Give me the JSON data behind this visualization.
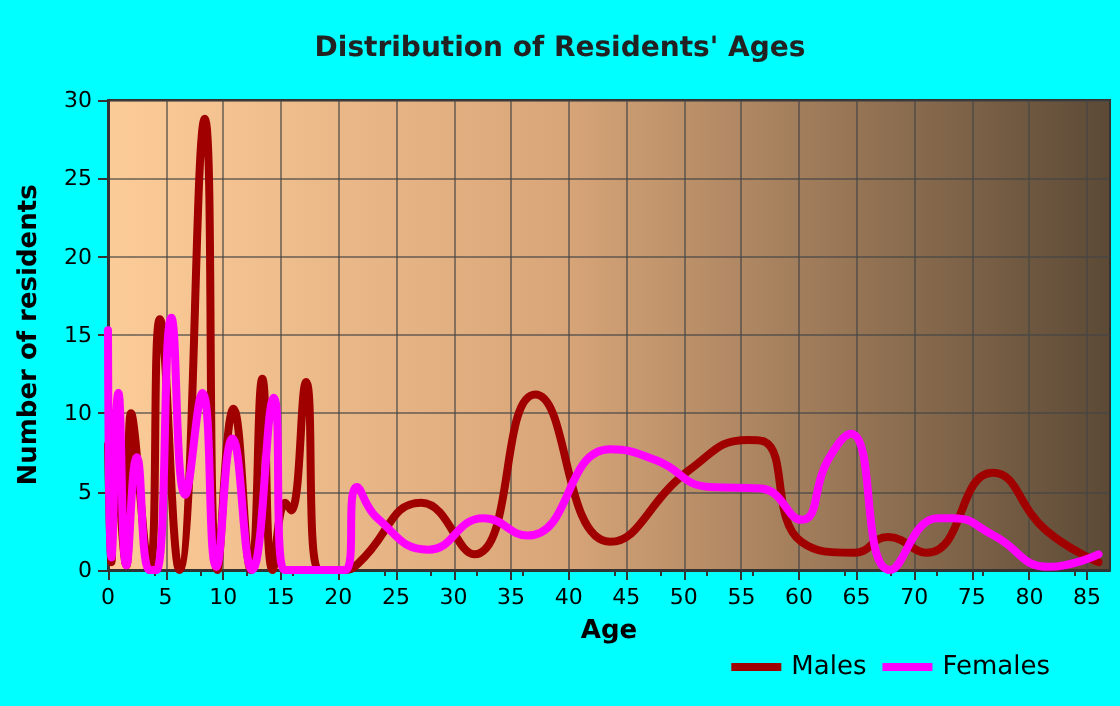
{
  "chart_data": {
    "type": "line",
    "title": "Distribution of Residents' Ages",
    "xlabel": "Age",
    "ylabel": "Number of residents",
    "xlim": [
      0,
      87
    ],
    "xticks": [
      0,
      5,
      10,
      15,
      20,
      25,
      30,
      35,
      40,
      45,
      50,
      55,
      60,
      65,
      70,
      75,
      80,
      85
    ],
    "ylim": [
      0,
      30
    ],
    "yticks": [
      0,
      5,
      10,
      15,
      20,
      25,
      30
    ],
    "grid": true,
    "legend": "bottom right",
    "marker": "none",
    "line_style": "solid",
    "series": [
      {
        "name": "Males",
        "color": "#a00000",
        "x": [
          0,
          0.3,
          0.5,
          1.6,
          2.0,
          3.6,
          4.5,
          6.2,
          8.4,
          9.5,
          10.9,
          12.4,
          13.4,
          14.3,
          15.4,
          15.9,
          17.2,
          18.3,
          20.6,
          21.7,
          27.2,
          31.8,
          37.1,
          43.6,
          50.5,
          55.6,
          57,
          60.2,
          64.8,
          67.7,
          71.1,
          76.8,
          81.5,
          86
        ],
        "values": [
          8,
          0.5,
          10,
          0.3,
          10,
          0,
          16,
          0,
          28.8,
          0,
          10.3,
          0,
          12.2,
          0,
          4.3,
          3.8,
          12,
          0,
          0,
          0.4,
          4.3,
          1.0,
          11.2,
          1.8,
          6.4,
          8.3,
          8.2,
          1.8,
          1.1,
          2.1,
          1.1,
          6.2,
          2.5,
          0.5
        ]
      },
      {
        "name": "Females",
        "color": "#ff00ff",
        "x": [
          0,
          0.3,
          0.9,
          1.6,
          2.5,
          3.6,
          4.2,
          5.5,
          6.7,
          8.2,
          9.4,
          10.8,
          12.5,
          14.4,
          15.3,
          20.6,
          21.6,
          23.4,
          27.8,
          32.6,
          36.4,
          43.6,
          47.6,
          52.2,
          56.7,
          60.2,
          62.5,
          64.5,
          67.9,
          72,
          73.4,
          76.9,
          81.7,
          86
        ],
        "values": [
          15.3,
          0.8,
          11.3,
          0.3,
          7.2,
          0,
          0,
          16.1,
          4.8,
          11.3,
          0.2,
          8.4,
          0,
          11,
          0,
          0,
          5.3,
          3.3,
          1.3,
          3.3,
          2.2,
          7.7,
          7.0,
          5.3,
          5.2,
          3.2,
          7,
          8.7,
          0,
          3.3,
          3.3,
          2.2,
          0.2,
          1.0
        ]
      }
    ]
  }
}
